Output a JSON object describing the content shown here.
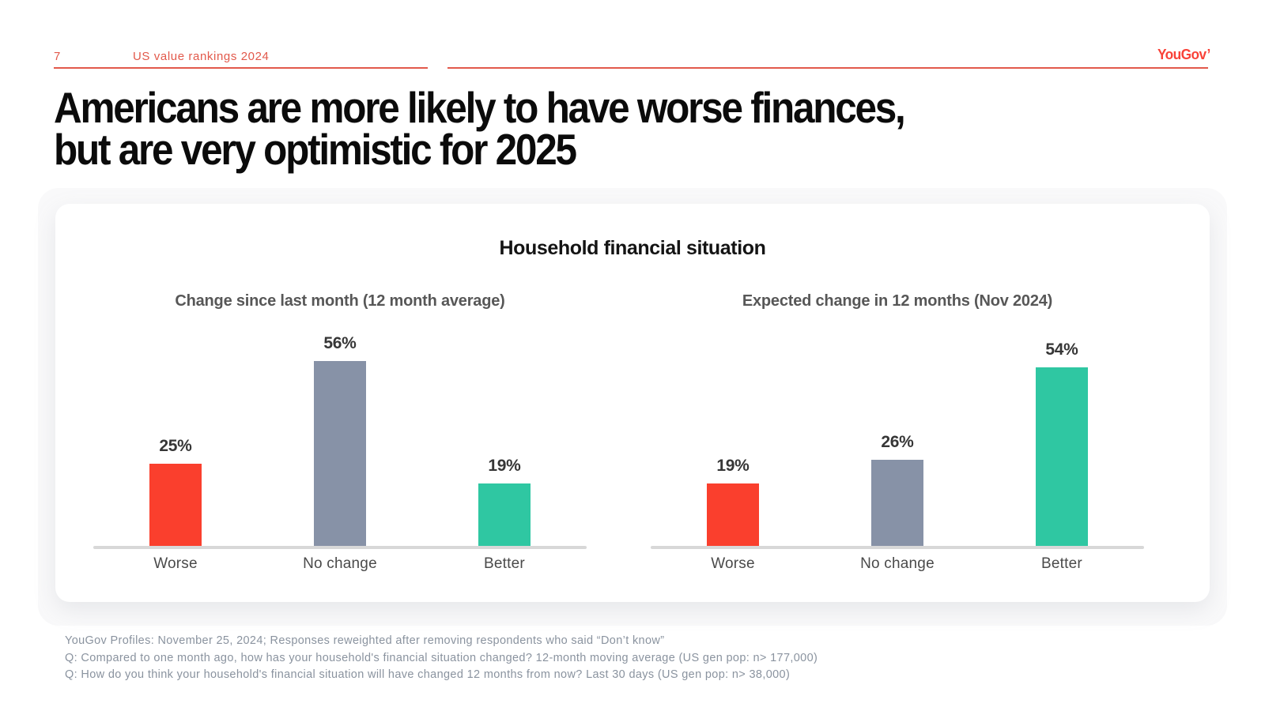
{
  "page": {
    "page_number": "7",
    "header_title": "US value rankings 2024",
    "logo_text": "YouGov",
    "title_line1": "Americans are more likely to have worse finances,",
    "title_line2": "but are very optimistic for 2025"
  },
  "colors": {
    "accent_red": "#E2594B",
    "logo_red": "#F94238",
    "bar_worse": "#FA3F2D",
    "bar_no_change": "#8792A7",
    "bar_better": "#2FC7A2",
    "baseline_gray": "#D8D8D8"
  },
  "chart_data": {
    "type": "bar",
    "title": "Household financial situation",
    "ylim": [
      0,
      60
    ],
    "grid": false,
    "legend": false,
    "value_labels": true,
    "bar_colors": [
      "#FA3F2D",
      "#8792A7",
      "#2FC7A2"
    ],
    "panels": [
      {
        "subtitle": "Change since last month (12 month average)",
        "categories": [
          "Worse",
          "No change",
          "Better"
        ],
        "values": [
          25,
          56,
          19
        ],
        "unit": "%"
      },
      {
        "subtitle": "Expected change in 12 months (Nov 2024)",
        "categories": [
          "Worse",
          "No change",
          "Better"
        ],
        "values": [
          19,
          26,
          54
        ],
        "unit": "%"
      }
    ]
  },
  "footer": {
    "lines": [
      "YouGov Profiles: November 25, 2024; Responses reweighted after removing respondents who said “Don’t know”",
      "Q: Compared to one month ago, how has your household's financial situation changed? 12-month moving average (US gen pop: n> 177,000)",
      "Q: How do you think your household's financial situation will have changed 12 months from now? Last 30 days (US gen pop: n> 38,000)"
    ]
  }
}
